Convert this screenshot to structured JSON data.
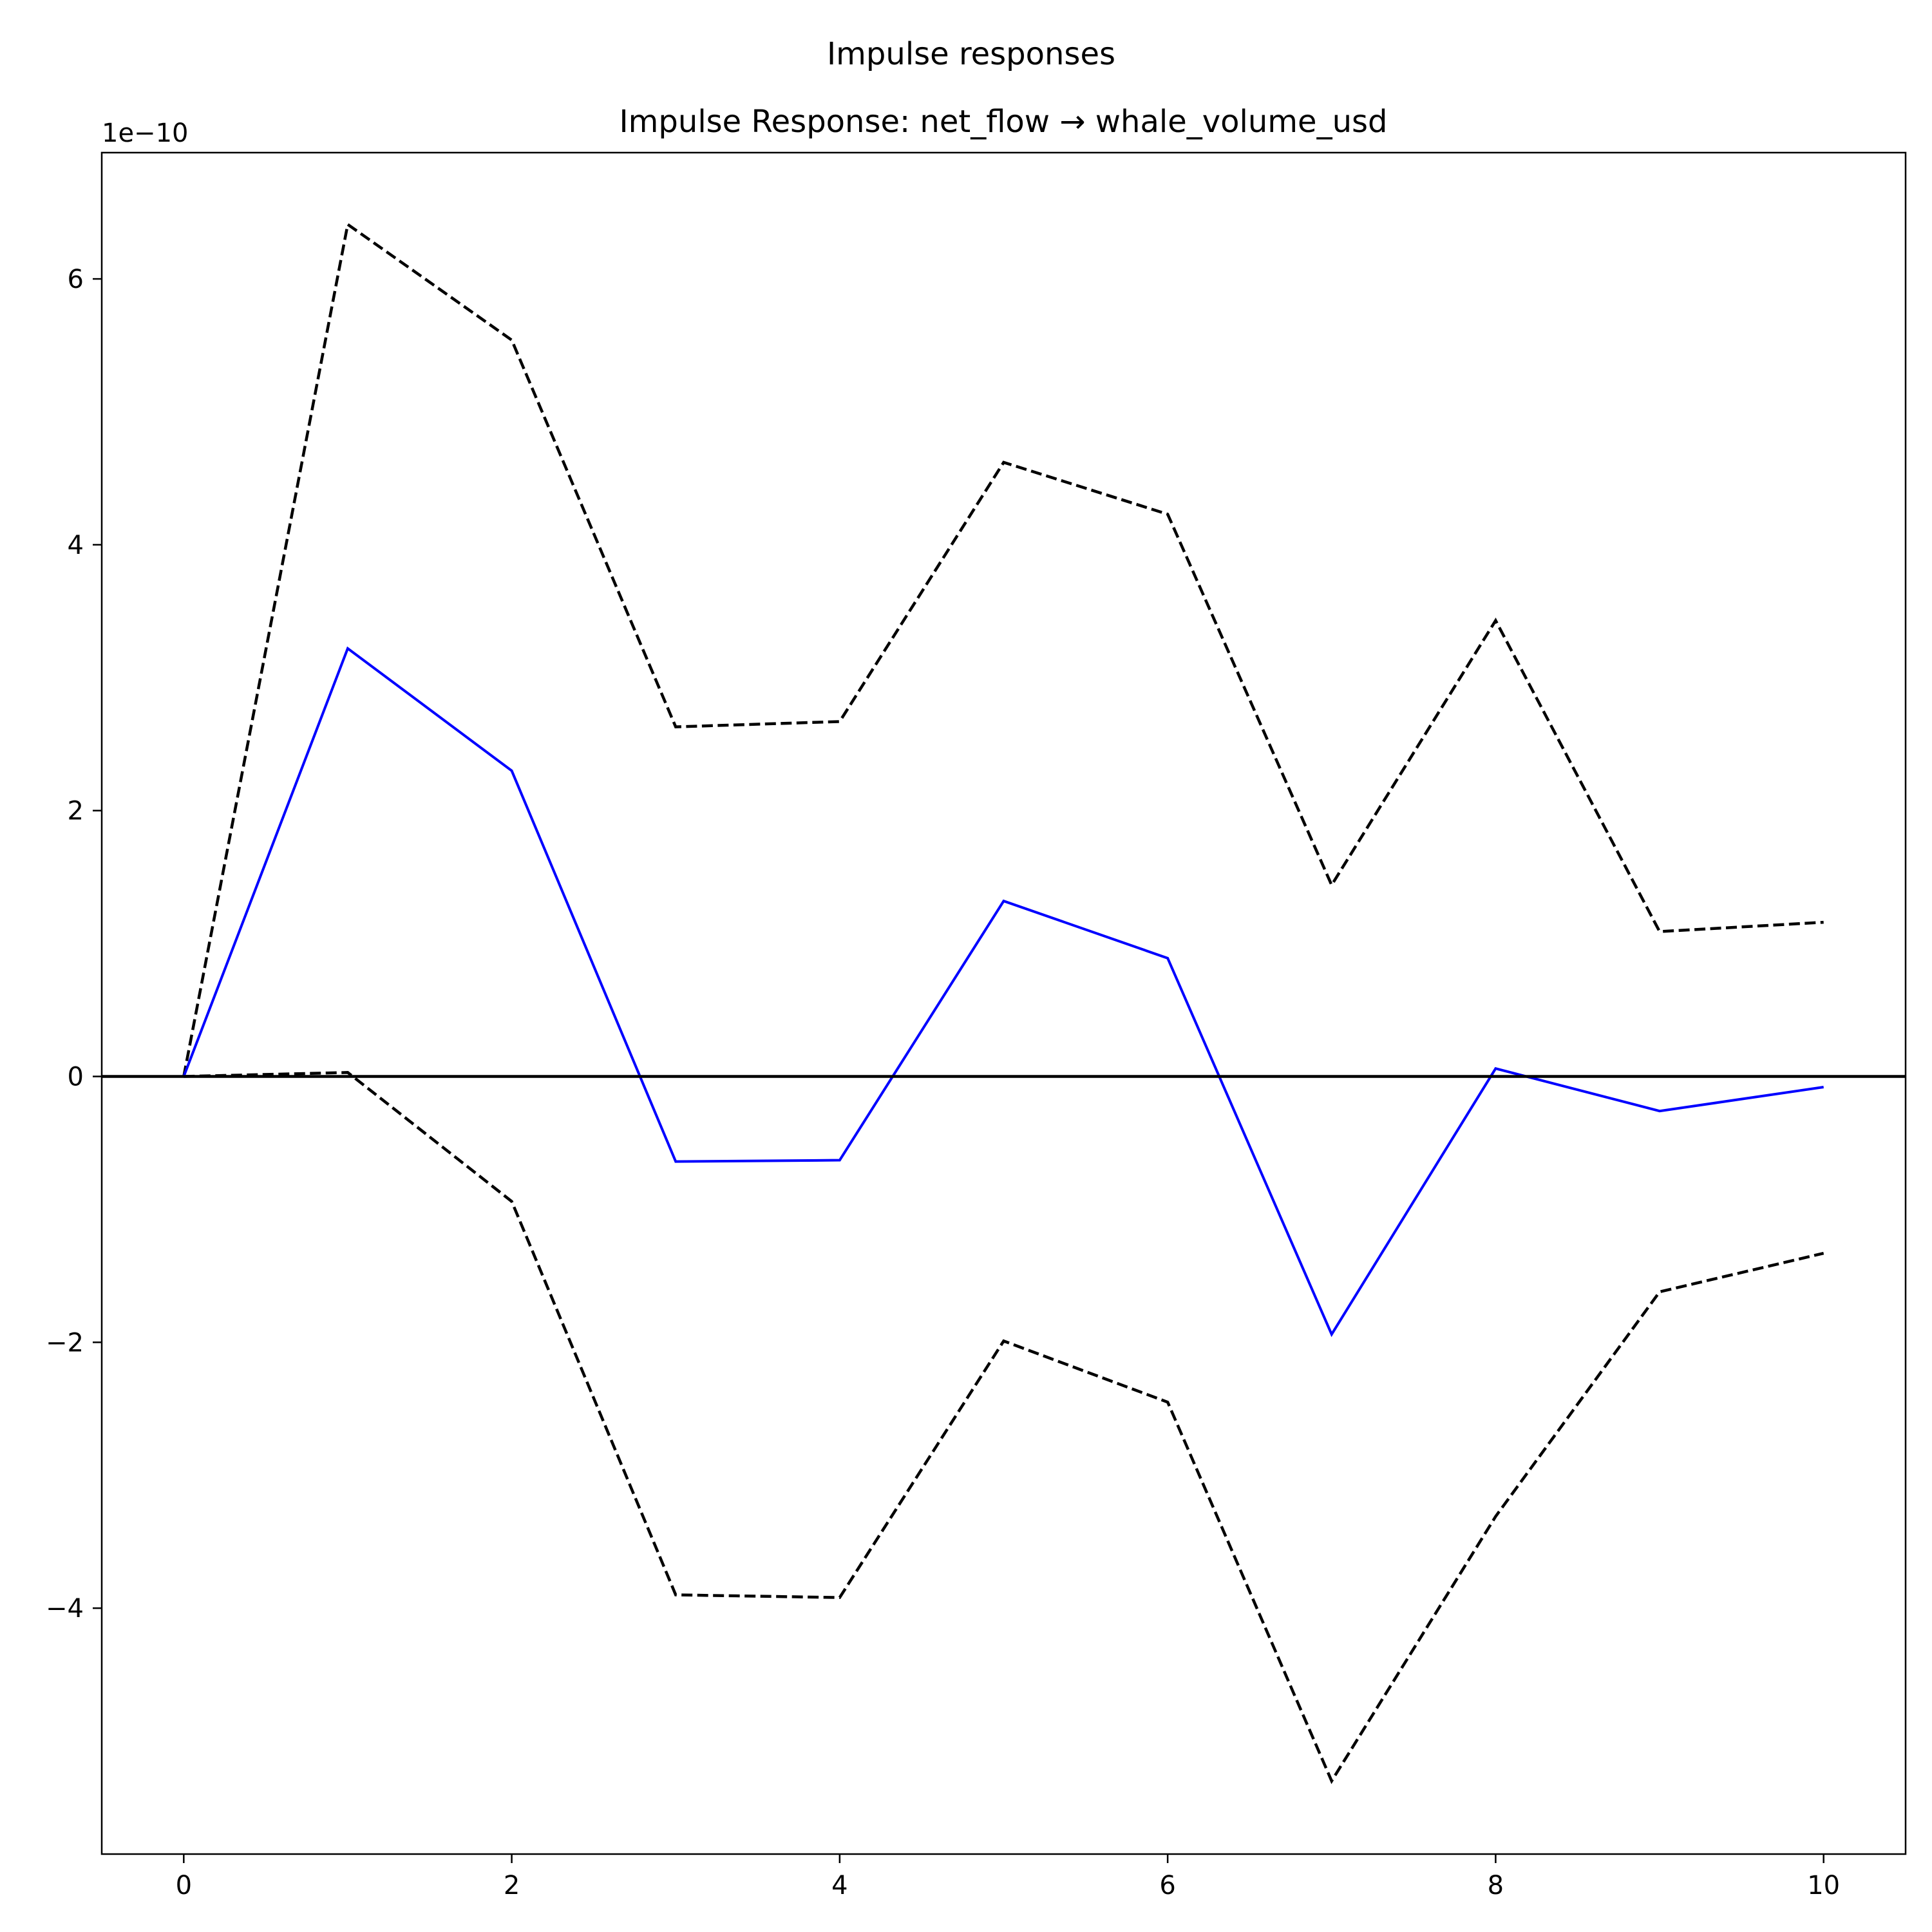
{
  "figure": {
    "suptitle": "Impulse responses"
  },
  "chart_data": {
    "type": "line",
    "title": "Impulse Response: net_flow → whale_volume_usd",
    "xlabel": "",
    "ylabel": "",
    "y_offset_label": "1e−10",
    "y_scale": 1e-10,
    "xlim": [
      -0.5,
      10.5
    ],
    "ylim": [
      -5.85,
      6.95
    ],
    "xticks": [
      0,
      2,
      4,
      6,
      8,
      10
    ],
    "xtick_labels": [
      "0",
      "2",
      "4",
      "6",
      "8",
      "10"
    ],
    "yticks": [
      -4,
      -2,
      0,
      2,
      4,
      6
    ],
    "ytick_labels": [
      "−4",
      "−2",
      "0",
      "2",
      "4",
      "6"
    ],
    "grid": false,
    "x": [
      0,
      1,
      2,
      3,
      4,
      5,
      6,
      7,
      8,
      9,
      10
    ],
    "series": [
      {
        "role": "response",
        "color": "#0000ff",
        "style": "solid",
        "values": [
          0.0,
          3.22,
          2.3,
          -0.64,
          -0.63,
          1.32,
          0.89,
          -1.94,
          0.06,
          -0.26,
          -0.08
        ]
      },
      {
        "role": "upper-band",
        "color": "#000000",
        "style": "dashed",
        "values": [
          0.0,
          6.41,
          5.54,
          2.63,
          2.67,
          4.62,
          4.23,
          1.44,
          3.43,
          1.09,
          1.16
        ]
      },
      {
        "role": "lower-band",
        "color": "#000000",
        "style": "dashed",
        "values": [
          0.0,
          0.03,
          -0.94,
          -3.9,
          -3.92,
          -1.99,
          -2.45,
          -5.3,
          -3.31,
          -1.62,
          -1.33
        ]
      }
    ],
    "zero_line": {
      "value": 0,
      "color": "#000000"
    }
  }
}
